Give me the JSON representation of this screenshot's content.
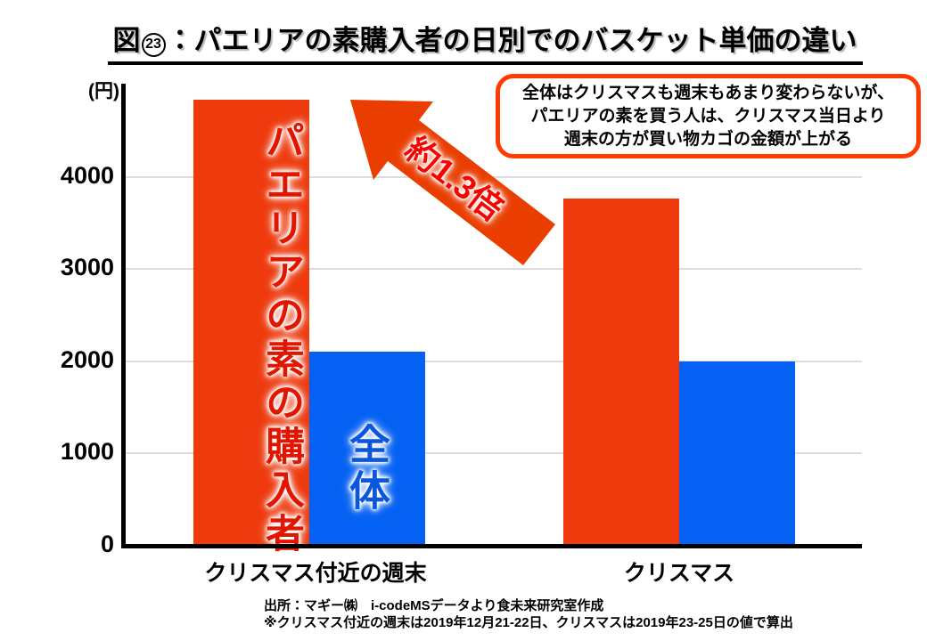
{
  "header": {
    "fig_prefix": "図",
    "fig_number": "23",
    "separator": "：",
    "title": "パエリアの素購入者の日別でのバスケット単価の違い"
  },
  "callout": {
    "border_color": "#ff3b00",
    "lines": [
      "全体はクリスマスも週末もあまり変わらないが、",
      "パエリアの素を買う人は、クリスマス当日より",
      "週末の方が買い物カゴの金額が上がる"
    ]
  },
  "annotation": {
    "arrow_label": "約1.3倍",
    "arrow_color": "#ea3d00",
    "arrow_label_color": "#f50400"
  },
  "chart_data": {
    "type": "bar",
    "unit_label": "(円)",
    "categories": [
      "クリスマス付近の週末",
      "クリスマス"
    ],
    "series": [
      {
        "name": "パエリアの素の購入者",
        "color": "#ee3a0d",
        "values": [
          4840,
          3760
        ]
      },
      {
        "name": "全体",
        "color": "#0561f3",
        "values": [
          2100,
          2000
        ]
      }
    ],
    "yticks": [
      0,
      1000,
      2000,
      3000,
      4000
    ],
    "ylim": [
      0,
      5000
    ],
    "grid": true,
    "legend_position": "in-bar-labels-first-group-only"
  },
  "footer": {
    "line1": "出所：マギー㈱　i-codeMSデータより食未来研究室作成",
    "line2": "※クリスマス付近の週末は2019年12月21-22日、クリスマスは2019年23-25日の値で算出"
  }
}
